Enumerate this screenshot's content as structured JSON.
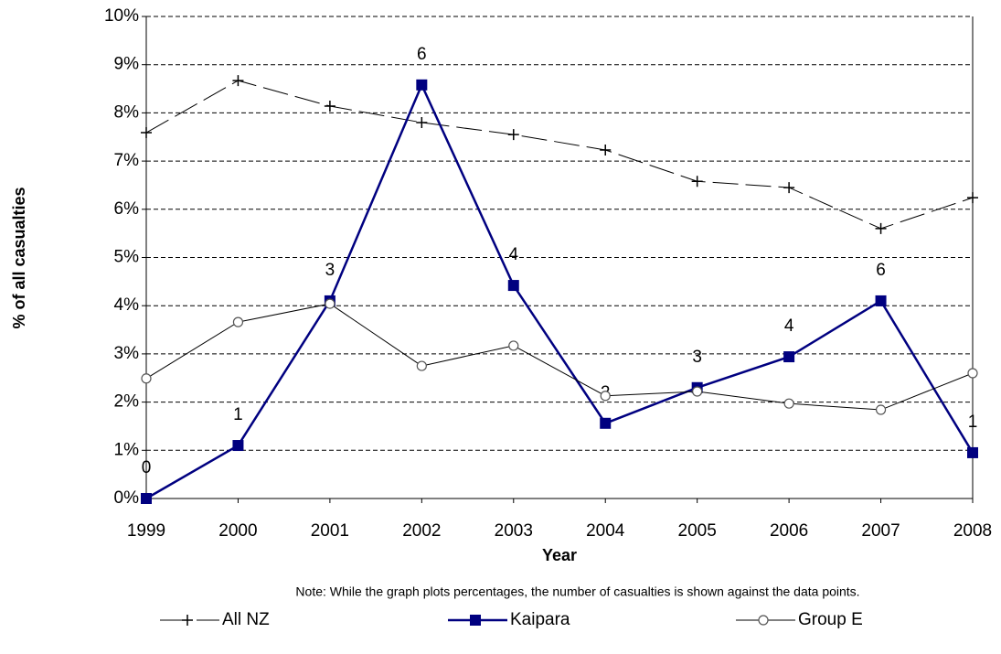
{
  "chart_data": {
    "type": "line",
    "x_label": "Year",
    "y_label": "% of all casualties",
    "note": "Note:  While the graph plots percentages, the number of casualties is shown against the data points.",
    "categories": [
      "1999",
      "2000",
      "2001",
      "2002",
      "2003",
      "2004",
      "2005",
      "2006",
      "2007",
      "2008"
    ],
    "series": [
      {
        "name": "All NZ",
        "color": "#000000",
        "marker": "plus",
        "line_style": "dashed",
        "values": [
          7.59,
          8.67,
          8.14,
          7.8,
          7.55,
          7.23,
          6.58,
          6.45,
          5.6,
          6.24
        ]
      },
      {
        "name": "Kaipara",
        "color": "#000080",
        "marker": "square",
        "line_style": "solid",
        "values": [
          0,
          1.1,
          4.1,
          8.58,
          4.42,
          1.56,
          2.3,
          2.94,
          4.1,
          0.95
        ],
        "casualty_counts": [
          0,
          1,
          3,
          6,
          4,
          2,
          3,
          4,
          6,
          1
        ]
      },
      {
        "name": "Group E",
        "color": "#000000",
        "marker": "circle",
        "line_style": "solid",
        "values": [
          2.49,
          3.66,
          4.04,
          2.75,
          3.17,
          2.13,
          2.22,
          1.97,
          1.84,
          2.6
        ]
      }
    ],
    "ylim": [
      0,
      10
    ],
    "yticks": [
      {
        "value": 0,
        "label": "0%"
      },
      {
        "value": 1,
        "label": "1%"
      },
      {
        "value": 2,
        "label": "2%"
      },
      {
        "value": 3,
        "label": "3%"
      },
      {
        "value": 4,
        "label": "4%"
      },
      {
        "value": 5,
        "label": "5%"
      },
      {
        "value": 6,
        "label": "6%"
      },
      {
        "value": 7,
        "label": "7%"
      },
      {
        "value": 8,
        "label": "8%"
      },
      {
        "value": 9,
        "label": "9%"
      },
      {
        "value": 10,
        "label": "10%"
      }
    ],
    "grid": true
  }
}
